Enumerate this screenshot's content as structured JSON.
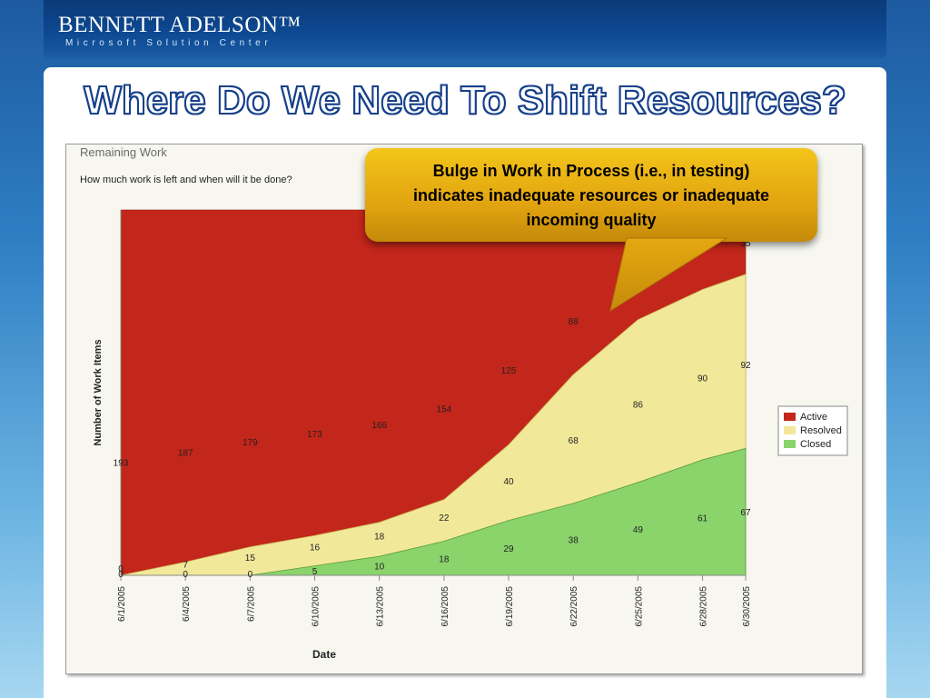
{
  "header": {
    "logo_main": "BENNETT ADELSON™",
    "logo_sub": "Microsoft Solution Center"
  },
  "slide": {
    "title": "Where Do We Need To Shift Resources?"
  },
  "callout": {
    "text": "Bulge in Work in Process (i.e., in testing) indicates inadequate resources or inadequate incoming quality"
  },
  "colors": {
    "active": "#c3261a",
    "resolved": "#f2e89a",
    "closed": "#8bd46c"
  },
  "chart_data": {
    "type": "area",
    "stacked": true,
    "title": "Remaining Work",
    "subtitle": "How much work is left and when will it be done?",
    "xlabel": "Date",
    "ylabel": "Number of Work Items",
    "x_ticks": [
      "6/1/2005",
      "6/4/2005",
      "6/7/2005",
      "6/10/2005",
      "6/13/2005",
      "6/16/2005",
      "6/19/2005",
      "6/22/2005",
      "6/25/2005",
      "6/28/2005",
      "6/30/2005"
    ],
    "x": [
      0,
      3,
      6,
      9,
      12,
      15,
      18,
      21,
      24,
      27,
      29
    ],
    "legend_position": "right",
    "series": [
      {
        "name": "Closed",
        "values": [
          0,
          0,
          0,
          5,
          10,
          18,
          29,
          38,
          49,
          61,
          67
        ]
      },
      {
        "name": "Resolved",
        "values": [
          0,
          7,
          15,
          16,
          18,
          22,
          40,
          68,
          86,
          90,
          92
        ]
      },
      {
        "name": "Active",
        "values": [
          193,
          187,
          179,
          173,
          166,
          154,
          125,
          88,
          null,
          null,
          null
        ]
      }
    ],
    "hidden_label": "35"
  }
}
